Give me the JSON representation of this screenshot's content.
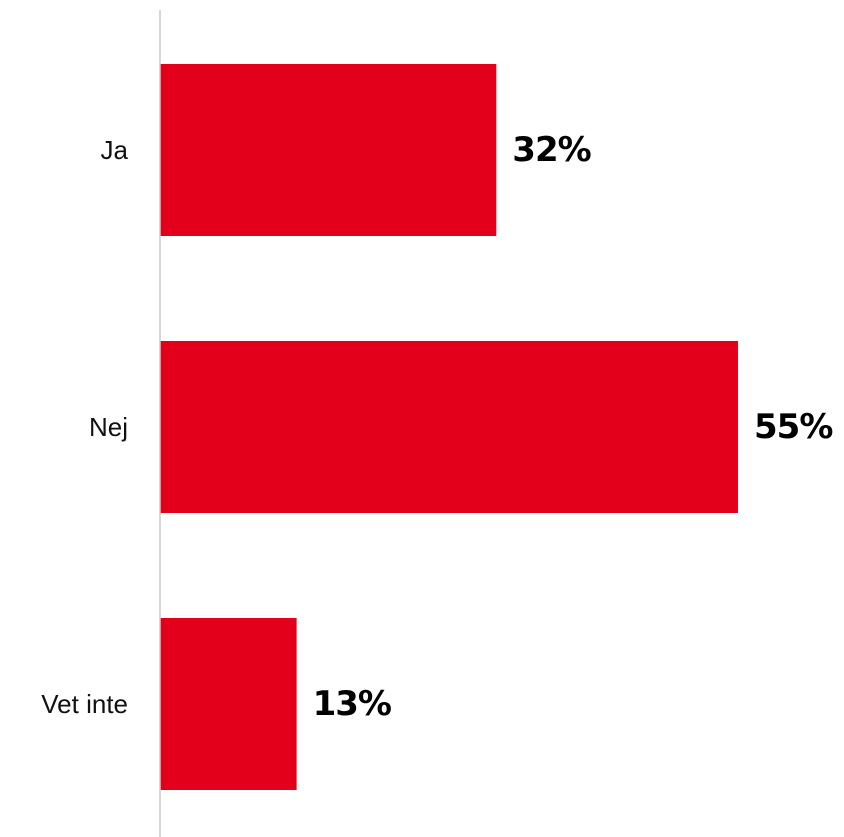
{
  "chart_data": {
    "type": "bar",
    "orientation": "horizontal",
    "categories": [
      "Ja",
      "Nej",
      "Vet inte"
    ],
    "values": [
      32,
      55,
      13
    ],
    "value_labels": [
      "32%",
      "55%",
      "13%"
    ],
    "unit": "%",
    "xlim": [
      0,
      55
    ],
    "grid": false,
    "legend": "none",
    "colors": {
      "bar": "#e3001b",
      "axis": "#cccccc",
      "text": "#111111",
      "value_text": "#000000"
    }
  }
}
